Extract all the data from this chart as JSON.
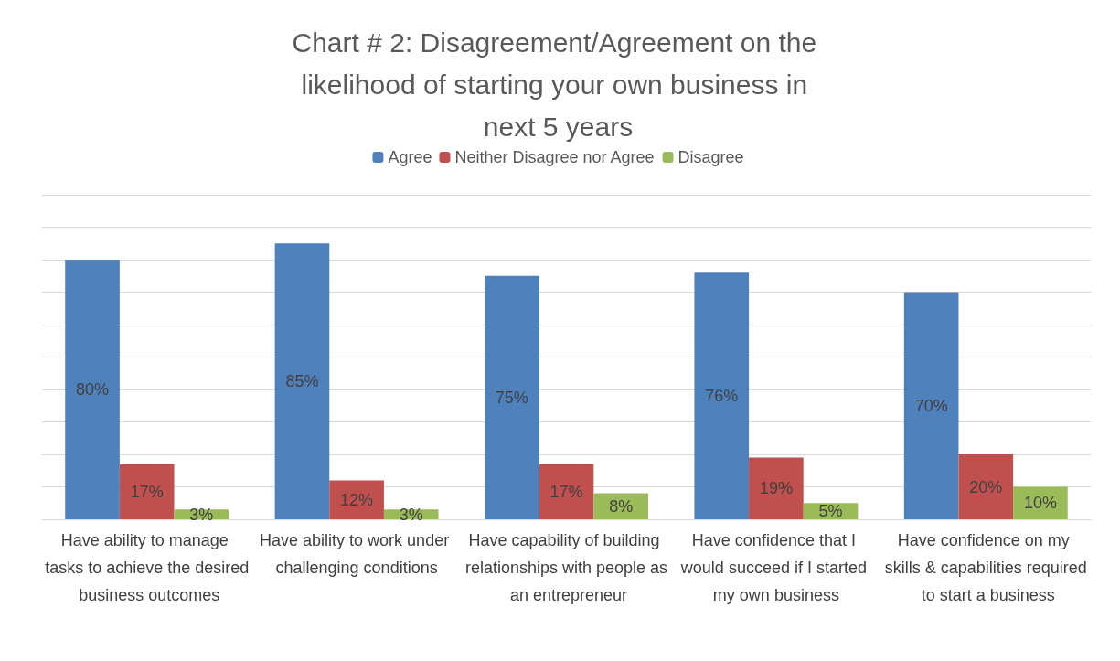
{
  "chart_data": {
    "type": "bar",
    "title": "Chart # 2: Disagreement/Agreement on the likelihood of starting your own business in next 5 years",
    "categories": [
      "Have ability to manage tasks to achieve the desired business outcomes",
      "Have ability to work under challenging conditions",
      "Have capability of building relationships with people as an entrepreneur",
      "Have confidence that I would succeed if I started my own business",
      "Have confidence on my skills & capabilities required to start a business"
    ],
    "series": [
      {
        "name": "Agree",
        "color": "#4f81bd",
        "values": [
          80,
          85,
          75,
          76,
          70
        ],
        "value_labels": [
          "80%",
          "85%",
          "75%",
          "76%",
          "70%"
        ]
      },
      {
        "name": "Neither Disagree nor Agree",
        "color": "#c0504d",
        "values": [
          17,
          12,
          17,
          19,
          20
        ],
        "value_labels": [
          "17%",
          "12%",
          "17%",
          "19%",
          "20%"
        ]
      },
      {
        "name": "Disagree",
        "color": "#9bbb59",
        "values": [
          3,
          3,
          8,
          5,
          10
        ],
        "value_labels": [
          "3%",
          "3%",
          "8%",
          "5%",
          "10%"
        ]
      }
    ],
    "ylim": [
      0,
      100
    ],
    "yticks": [
      {
        "value": 0,
        "label": null
      },
      {
        "value": 10,
        "label": null
      },
      {
        "value": 20,
        "label": null
      },
      {
        "value": 30,
        "label": null
      },
      {
        "value": 40,
        "label": null
      },
      {
        "value": 50,
        "label": null
      },
      {
        "value": 60,
        "label": null
      },
      {
        "value": 70,
        "label": null
      },
      {
        "value": 80,
        "label": null
      },
      {
        "value": 90,
        "label": null
      },
      {
        "value": 100,
        "label": null
      }
    ],
    "tick_labels": "x",
    "grid": "y",
    "legend": "top"
  }
}
